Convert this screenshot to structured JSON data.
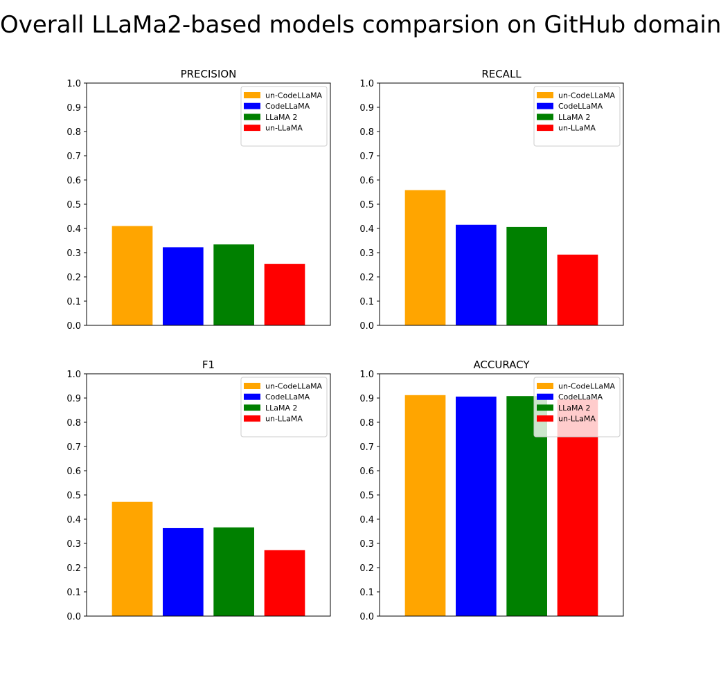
{
  "figure": {
    "title": "Overall LLaMa2-based models comparsion on GitHub domain"
  },
  "chart_data": [
    {
      "type": "bar",
      "title": "PRECISION",
      "categories": [
        "un-CodeLLaMA",
        "CodeLLaMA",
        "LLaMA 2",
        "un-LLaMA"
      ],
      "values": [
        0.41,
        0.322,
        0.334,
        0.254
      ],
      "colors": [
        "#FFA500",
        "#0000FF",
        "#008000",
        "#FF0000"
      ],
      "ylim": [
        0,
        1.0
      ],
      "yticks": [
        "0.0",
        "0.1",
        "0.2",
        "0.3",
        "0.4",
        "0.5",
        "0.6",
        "0.7",
        "0.8",
        "0.9",
        "1.0"
      ],
      "legend": [
        "un-CodeLLaMA",
        "CodeLLaMA",
        "LLaMA 2",
        "un-LLaMA"
      ],
      "legend_position": "top-right",
      "grid": false
    },
    {
      "type": "bar",
      "title": "RECALL",
      "categories": [
        "un-CodeLLaMA",
        "CodeLLaMA",
        "LLaMA 2",
        "un-LLaMA"
      ],
      "values": [
        0.558,
        0.415,
        0.406,
        0.292
      ],
      "colors": [
        "#FFA500",
        "#0000FF",
        "#008000",
        "#FF0000"
      ],
      "ylim": [
        0,
        1.0
      ],
      "yticks": [
        "0.0",
        "0.1",
        "0.2",
        "0.3",
        "0.4",
        "0.5",
        "0.6",
        "0.7",
        "0.8",
        "0.9",
        "1.0"
      ],
      "legend": [
        "un-CodeLLaMA",
        "CodeLLaMA",
        "LLaMA 2",
        "un-LLaMA"
      ],
      "legend_position": "top-right",
      "grid": false
    },
    {
      "type": "bar",
      "title": "F1",
      "categories": [
        "un-CodeLLaMA",
        "CodeLLaMA",
        "LLaMA 2",
        "un-LLaMA"
      ],
      "values": [
        0.472,
        0.363,
        0.366,
        0.272
      ],
      "colors": [
        "#FFA500",
        "#0000FF",
        "#008000",
        "#FF0000"
      ],
      "ylim": [
        0,
        1.0
      ],
      "yticks": [
        "0.0",
        "0.1",
        "0.2",
        "0.3",
        "0.4",
        "0.5",
        "0.6",
        "0.7",
        "0.8",
        "0.9",
        "1.0"
      ],
      "legend": [
        "un-CodeLLaMA",
        "CodeLLaMA",
        "LLaMA 2",
        "un-LLaMA"
      ],
      "legend_position": "top-right",
      "grid": false
    },
    {
      "type": "bar",
      "title": "ACCURACY",
      "categories": [
        "un-CodeLLaMA",
        "CodeLLaMA",
        "LLaMA 2",
        "un-LLaMA"
      ],
      "values": [
        0.912,
        0.906,
        0.908,
        0.894
      ],
      "colors": [
        "#FFA500",
        "#0000FF",
        "#008000",
        "#FF0000"
      ],
      "ylim": [
        0,
        1.0
      ],
      "yticks": [
        "0.0",
        "0.1",
        "0.2",
        "0.3",
        "0.4",
        "0.5",
        "0.6",
        "0.7",
        "0.8",
        "0.9",
        "1.0"
      ],
      "legend": [
        "un-CodeLLaMA",
        "CodeLLaMA",
        "LLaMA 2",
        "un-LLaMA"
      ],
      "legend_position": "top-right",
      "grid": false
    }
  ]
}
